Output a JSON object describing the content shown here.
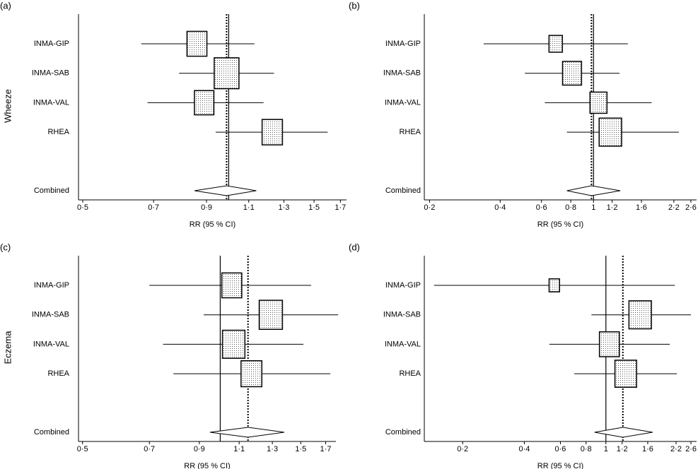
{
  "chart_data": [
    {
      "type": "forest",
      "panel": "(a)",
      "ylabel": "Wheeze",
      "xlabel": "RR (95 % CI)",
      "xscale": "log",
      "reference": 1,
      "categories": [
        "INMA-GIP",
        "INMA-SAB",
        "INMA-VAL",
        "RHEA"
      ],
      "values": [
        0.86,
        0.99,
        0.89,
        1.23
      ],
      "lower": [
        0.66,
        0.79,
        0.68,
        0.94
      ],
      "upper": [
        1.13,
        1.24,
        1.18,
        1.6
      ],
      "weights": [
        22,
        34,
        21,
        23
      ],
      "combined": {
        "label": "Combined",
        "value": 0.99,
        "lower": 0.85,
        "upper": 1.14
      },
      "xlim": [
        0.49,
        1.75
      ],
      "xticks": [
        {
          "value": 0.5,
          "label": "0·5"
        },
        {
          "value": 0.7,
          "label": "0·7"
        },
        {
          "value": 0.9,
          "label": "0·9"
        },
        {
          "value": 1.1,
          "label": "1·1"
        },
        {
          "value": 1.3,
          "label": "1·3"
        },
        {
          "value": 1.5,
          "label": "1·5"
        },
        {
          "value": 1.7,
          "label": "1·7"
        }
      ]
    },
    {
      "type": "forest",
      "panel": "(b)",
      "xlabel": "RR (95 % CI)",
      "xscale": "log",
      "reference": 1,
      "categories": [
        "INMA-GIP",
        "INMA-SAB",
        "INMA-VAL",
        "RHEA"
      ],
      "values": [
        0.69,
        0.81,
        1.05,
        1.18
      ],
      "lower": [
        0.34,
        0.51,
        0.62,
        0.77
      ],
      "upper": [
        1.4,
        1.29,
        1.77,
        2.31
      ],
      "weights": [
        10,
        20,
        16,
        28
      ],
      "combined": {
        "label": "Combined",
        "value": 0.98,
        "lower": 0.77,
        "upper": 1.3
      },
      "xlim": [
        0.19,
        2.75
      ],
      "xticks": [
        {
          "value": 0.2,
          "label": "0·2"
        },
        {
          "value": 0.4,
          "label": "0·4"
        },
        {
          "value": 0.6,
          "label": "0·6"
        },
        {
          "value": 0.8,
          "label": "0·8"
        },
        1,
        {
          "value": 1.2,
          "label": "1·2"
        },
        {
          "value": 1.6,
          "label": "1·6"
        },
        {
          "value": 2.2,
          "label": "2·2"
        },
        {
          "value": 2.6,
          "label": "2·6"
        }
      ]
    },
    {
      "type": "forest",
      "panel": "(c)",
      "ylabel": "Eczema",
      "xlabel": "RR (95 % CI)",
      "xscale": "log",
      "reference": 1,
      "categories": [
        "INMA-GIP",
        "INMA-SAB",
        "INMA-VAL",
        "RHEA"
      ],
      "values": [
        1.06,
        1.29,
        1.07,
        1.17
      ],
      "lower": [
        0.7,
        0.92,
        0.75,
        0.79
      ],
      "upper": [
        1.58,
        1.81,
        1.52,
        1.74
      ],
      "weights": [
        22,
        30,
        28,
        24
      ],
      "combined": {
        "label": "Combined",
        "value": 1.15,
        "lower": 0.95,
        "upper": 1.38
      },
      "xlim": [
        0.49,
        1.79
      ],
      "xticks": [
        {
          "value": 0.5,
          "label": "0·5"
        },
        {
          "value": 0.7,
          "label": "0·7"
        },
        {
          "value": 0.9,
          "label": "0·9"
        },
        {
          "value": 1.1,
          "label": "1·1"
        },
        {
          "value": 1.3,
          "label": "1·3"
        },
        {
          "value": 1.5,
          "label": "1·5"
        },
        {
          "value": 1.7,
          "label": "1·7"
        }
      ]
    },
    {
      "type": "forest",
      "panel": "(d)",
      "xlabel": "RR (95 % CI)",
      "xscale": "log",
      "reference": 1,
      "categories": [
        "INMA-GIP",
        "INMA-SAB",
        "INMA-VAL",
        "RHEA"
      ],
      "values": [
        0.56,
        1.47,
        1.04,
        1.25
      ],
      "lower": [
        0.145,
        0.85,
        0.53,
        0.7
      ],
      "upper": [
        2.17,
        2.6,
        2.05,
        2.22
      ],
      "weights": [
        6,
        28,
        22,
        26
      ],
      "combined": {
        "label": "Combined",
        "value": 1.21,
        "lower": 0.88,
        "upper": 1.69
      },
      "xlim": [
        0.13,
        2.77
      ],
      "xticks": [
        {
          "value": 0.2,
          "label": "0·2"
        },
        {
          "value": 0.4,
          "label": "0·4"
        },
        {
          "value": 0.6,
          "label": "0·6"
        },
        {
          "value": 0.8,
          "label": "0·8"
        },
        1,
        {
          "value": 1.2,
          "label": "1·2"
        },
        {
          "value": 1.6,
          "label": "1·6"
        },
        {
          "value": 2.2,
          "label": "2·2"
        },
        {
          "value": 2.6,
          "label": "2·6"
        }
      ]
    }
  ]
}
